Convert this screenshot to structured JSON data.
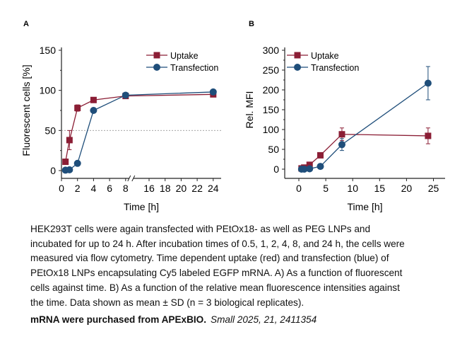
{
  "colors": {
    "uptake": "#8b1e35",
    "transfection": "#1f4e7a",
    "axis": "#222222",
    "reference_line": "#999999"
  },
  "chart_data": [
    {
      "panel": "A",
      "type": "line",
      "xlabel": "Time [h]",
      "ylabel": "Fluorescent cells [%]",
      "ylim": [
        0,
        150
      ],
      "yticks": [
        0,
        50,
        100,
        150
      ],
      "xticks": [
        0,
        2,
        4,
        6,
        8,
        16,
        18,
        20,
        22,
        24
      ],
      "x_axis_break": [
        8,
        16
      ],
      "reference_line_y": 50,
      "legend": "top-right",
      "series": [
        {
          "name": "Uptake",
          "marker": "square",
          "x": [
            0.5,
            1,
            2,
            4,
            8,
            24
          ],
          "y": [
            11,
            38,
            78,
            88,
            93,
            95
          ],
          "sd": [
            0,
            12,
            4,
            1,
            1,
            1
          ]
        },
        {
          "name": "Transfection",
          "marker": "circle",
          "x": [
            0.5,
            1,
            2,
            4,
            8,
            24
          ],
          "y": [
            0.5,
            1,
            9,
            75,
            94,
            98
          ],
          "sd": [
            0,
            0,
            1,
            2,
            1,
            1
          ]
        }
      ]
    },
    {
      "panel": "B",
      "type": "line",
      "xlabel": "Time [h]",
      "ylabel": "Rel. MFI",
      "ylim": [
        0,
        300
      ],
      "xlim": [
        0,
        25
      ],
      "yticks": [
        0,
        50,
        100,
        150,
        200,
        250,
        300
      ],
      "xticks": [
        0,
        5,
        10,
        15,
        20,
        25
      ],
      "legend": "top-left",
      "series": [
        {
          "name": "Uptake",
          "marker": "square",
          "x": [
            0.5,
            1,
            2,
            4,
            8,
            24
          ],
          "y": [
            2,
            4,
            11,
            35,
            88,
            84
          ],
          "sd": [
            1,
            1,
            2,
            4,
            16,
            20
          ]
        },
        {
          "name": "Transfection",
          "marker": "circle",
          "x": [
            0.5,
            1,
            2,
            4,
            8,
            24
          ],
          "y": [
            0,
            0,
            1,
            7,
            62,
            217
          ],
          "sd": [
            0,
            0,
            0,
            1,
            15,
            42
          ]
        }
      ]
    }
  ],
  "caption": " HEK293T cells were again transfected with PEtOx18- as well as PEG LNPs and\nincubated for up to 24 h. After incubation times of 0.5, 1, 2, 4, 8, and 24 h, the cells were\nmeasured via flow cytometry. Time dependent uptake (red) and transfection (blue) of\nPEtOx18 LNPs encapsulating Cy5 labeled EGFP mRNA. A) As a function of fluorescent\ncells against time. B) As a function of the relative mean fluorescence intensities against\nthe time. Data shown as mean ± SD (n = 3 biological replicates).",
  "source_note": "mRNA were purchased from APExBIO.",
  "citation": "Small 2025, 21, 2411354"
}
